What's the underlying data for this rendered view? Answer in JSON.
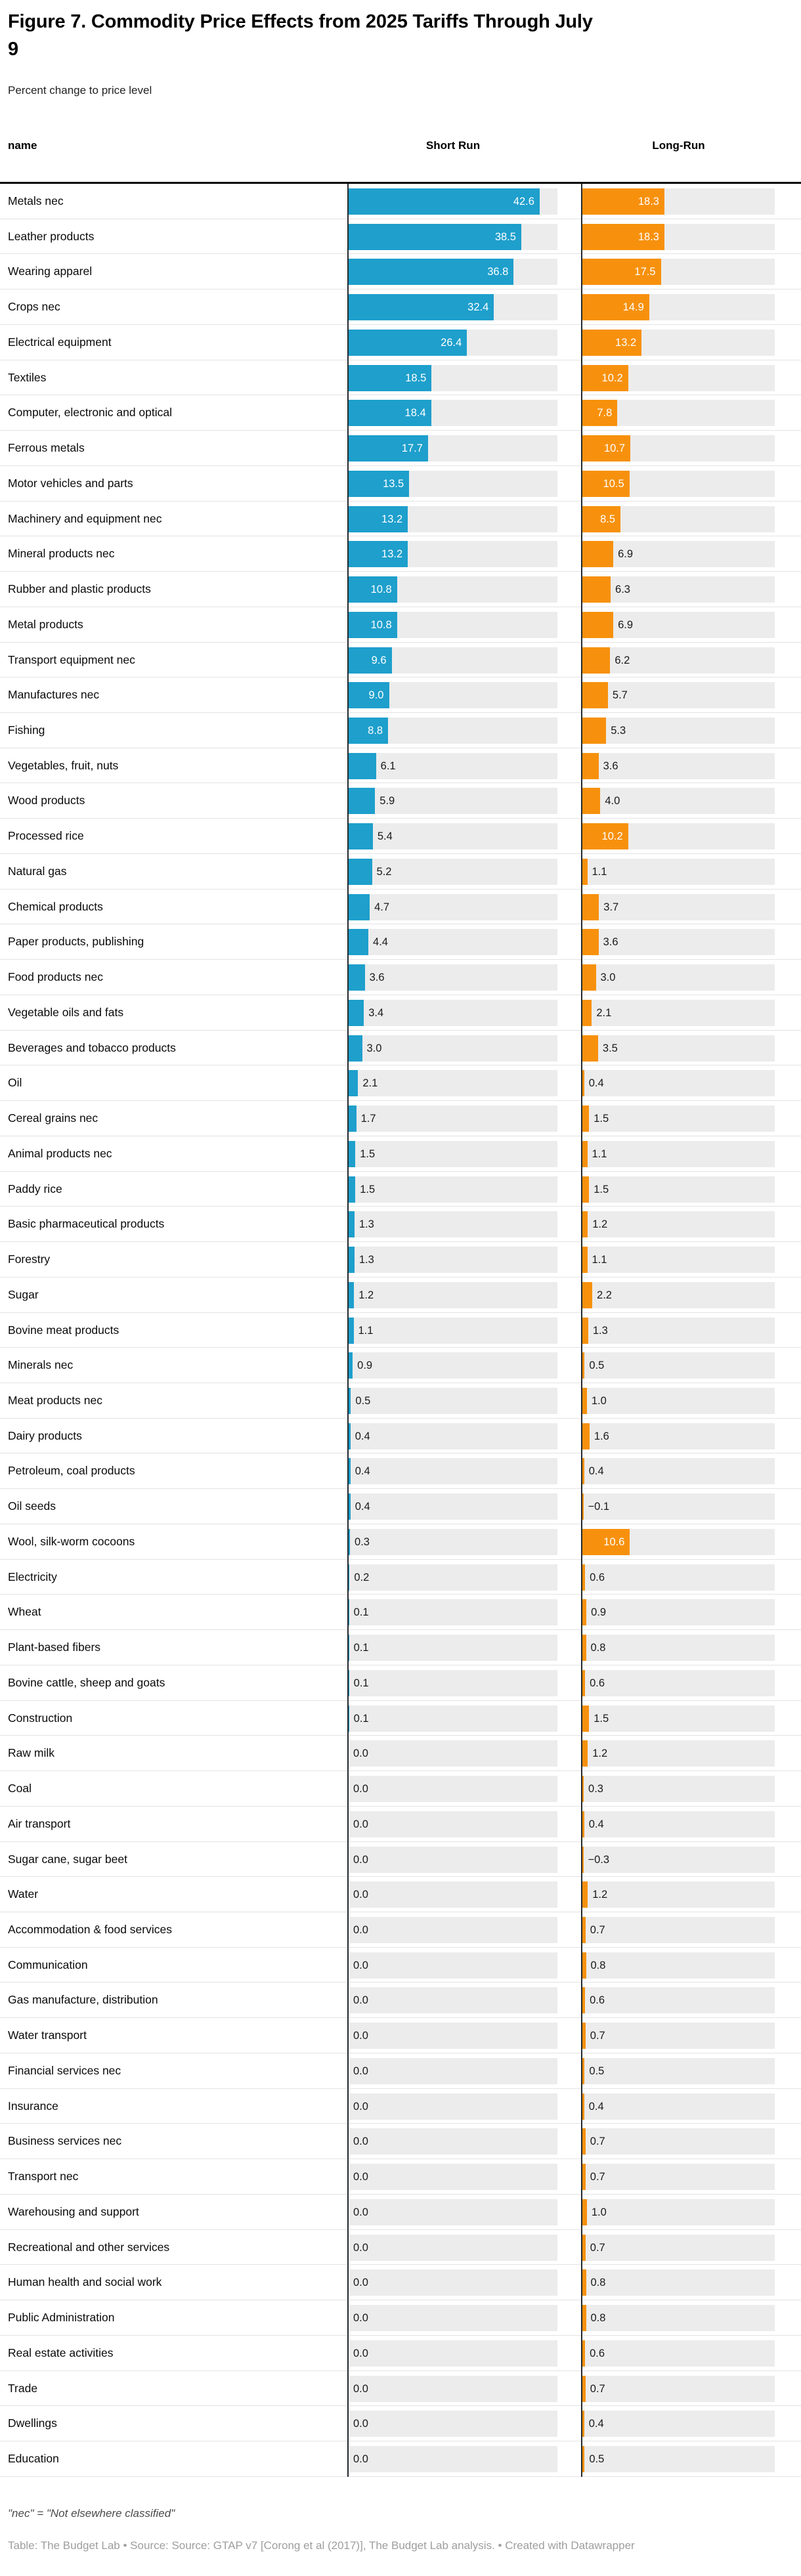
{
  "title": "Figure 7. Commodity Price Effects from 2025 Tariffs Through July 9",
  "subtitle": "Percent change to price level",
  "columns": {
    "name": "name",
    "short": "Short Run",
    "long": "Long-Run"
  },
  "footnote": "\"nec\" = \"Not elsewhere classified\"",
  "source": "Table: The Budget Lab • Source: Source: GTAP v7 [Corong et al (2017)], The Budget Lab analysis. • Created with Datawrapper",
  "colors": {
    "short_bar": "#1E9FCC",
    "long_bar": "#F7910D",
    "track": "#ECECEC",
    "axis_line": "#24292E",
    "header_rule": "#000000",
    "separator": "#E3E3E3",
    "label_inside": "#FFFFFF",
    "label_outside": "#1A1A1A",
    "source_text": "#9E9E9E"
  },
  "chart_data": {
    "type": "bar",
    "orientation": "horizontal",
    "value_unit": "percent change to price level",
    "axis_max": 46.8,
    "legend_position": "column headers",
    "grid": false,
    "series_names": [
      "Short Run",
      "Long-Run"
    ],
    "rows": [
      {
        "name": "Metals nec",
        "short": 42.6,
        "long": 18.3
      },
      {
        "name": "Leather products",
        "short": 38.5,
        "long": 18.3
      },
      {
        "name": "Wearing apparel",
        "short": 36.8,
        "long": 17.5
      },
      {
        "name": "Crops nec",
        "short": 32.4,
        "long": 14.9
      },
      {
        "name": "Electrical equipment",
        "short": 26.4,
        "long": 13.2
      },
      {
        "name": "Textiles",
        "short": 18.5,
        "long": 10.2
      },
      {
        "name": "Computer, electronic and optical",
        "short": 18.4,
        "long": 7.8
      },
      {
        "name": "Ferrous metals",
        "short": 17.7,
        "long": 10.7
      },
      {
        "name": "Motor vehicles and parts",
        "short": 13.5,
        "long": 10.5
      },
      {
        "name": "Machinery and equipment nec",
        "short": 13.2,
        "long": 8.5
      },
      {
        "name": "Mineral products nec",
        "short": 13.2,
        "long": 6.9
      },
      {
        "name": "Rubber and plastic products",
        "short": 10.8,
        "long": 6.3
      },
      {
        "name": "Metal products",
        "short": 10.8,
        "long": 6.9
      },
      {
        "name": "Transport equipment nec",
        "short": 9.6,
        "long": 6.2
      },
      {
        "name": "Manufactures nec",
        "short": 9.0,
        "long": 5.7
      },
      {
        "name": "Fishing",
        "short": 8.8,
        "long": 5.3
      },
      {
        "name": "Vegetables, fruit, nuts",
        "short": 6.1,
        "long": 3.6
      },
      {
        "name": "Wood products",
        "short": 5.9,
        "long": 4.0
      },
      {
        "name": "Processed rice",
        "short": 5.4,
        "long": 10.2
      },
      {
        "name": "Natural gas",
        "short": 5.2,
        "long": 1.1
      },
      {
        "name": "Chemical products",
        "short": 4.7,
        "long": 3.7
      },
      {
        "name": "Paper products, publishing",
        "short": 4.4,
        "long": 3.6
      },
      {
        "name": "Food products nec",
        "short": 3.6,
        "long": 3.0
      },
      {
        "name": "Vegetable oils and fats",
        "short": 3.4,
        "long": 2.1
      },
      {
        "name": "Beverages and tobacco products",
        "short": 3.0,
        "long": 3.5
      },
      {
        "name": "Oil",
        "short": 2.1,
        "long": 0.4
      },
      {
        "name": "Cereal grains nec",
        "short": 1.7,
        "long": 1.5
      },
      {
        "name": "Animal products nec",
        "short": 1.5,
        "long": 1.1
      },
      {
        "name": "Paddy rice",
        "short": 1.5,
        "long": 1.5
      },
      {
        "name": "Basic pharmaceutical products",
        "short": 1.3,
        "long": 1.2
      },
      {
        "name": "Forestry",
        "short": 1.3,
        "long": 1.1
      },
      {
        "name": "Sugar",
        "short": 1.2,
        "long": 2.2
      },
      {
        "name": "Bovine meat products",
        "short": 1.1,
        "long": 1.3
      },
      {
        "name": "Minerals nec",
        "short": 0.9,
        "long": 0.5
      },
      {
        "name": "Meat products nec",
        "short": 0.5,
        "long": 1.0
      },
      {
        "name": "Dairy products",
        "short": 0.4,
        "long": 1.6
      },
      {
        "name": "Petroleum, coal products",
        "short": 0.4,
        "long": 0.4
      },
      {
        "name": "Oil seeds",
        "short": 0.4,
        "long": -0.1
      },
      {
        "name": "Wool, silk-worm cocoons",
        "short": 0.3,
        "long": 10.6
      },
      {
        "name": "Electricity",
        "short": 0.2,
        "long": 0.6
      },
      {
        "name": "Wheat",
        "short": 0.1,
        "long": 0.9
      },
      {
        "name": "Plant-based fibers",
        "short": 0.1,
        "long": 0.8
      },
      {
        "name": "Bovine cattle, sheep and goats",
        "short": 0.1,
        "long": 0.6
      },
      {
        "name": "Construction",
        "short": 0.1,
        "long": 1.5
      },
      {
        "name": "Raw milk",
        "short": 0.0,
        "long": 1.2
      },
      {
        "name": "Coal",
        "short": 0.0,
        "long": 0.3
      },
      {
        "name": "Air transport",
        "short": 0.0,
        "long": 0.4
      },
      {
        "name": "Sugar cane, sugar beet",
        "short": 0.0,
        "long": -0.3
      },
      {
        "name": "Water",
        "short": 0.0,
        "long": 1.2
      },
      {
        "name": "Accommodation & food services",
        "short": 0.0,
        "long": 0.7
      },
      {
        "name": "Communication",
        "short": 0.0,
        "long": 0.8
      },
      {
        "name": "Gas manufacture, distribution",
        "short": 0.0,
        "long": 0.6
      },
      {
        "name": "Water transport",
        "short": 0.0,
        "long": 0.7
      },
      {
        "name": "Financial services nec",
        "short": 0.0,
        "long": 0.5
      },
      {
        "name": "Insurance",
        "short": 0.0,
        "long": 0.4
      },
      {
        "name": "Business services nec",
        "short": 0.0,
        "long": 0.7
      },
      {
        "name": "Transport nec",
        "short": 0.0,
        "long": 0.7
      },
      {
        "name": "Warehousing and support",
        "short": 0.0,
        "long": 1.0
      },
      {
        "name": "Recreational and other services",
        "short": 0.0,
        "long": 0.7
      },
      {
        "name": "Human health and social work",
        "short": 0.0,
        "long": 0.8
      },
      {
        "name": "Public Administration",
        "short": 0.0,
        "long": 0.8
      },
      {
        "name": "Real estate activities",
        "short": 0.0,
        "long": 0.6
      },
      {
        "name": "Trade",
        "short": 0.0,
        "long": 0.7
      },
      {
        "name": "Dwellings",
        "short": 0.0,
        "long": 0.4
      },
      {
        "name": "Education",
        "short": 0.0,
        "long": 0.5
      }
    ]
  }
}
